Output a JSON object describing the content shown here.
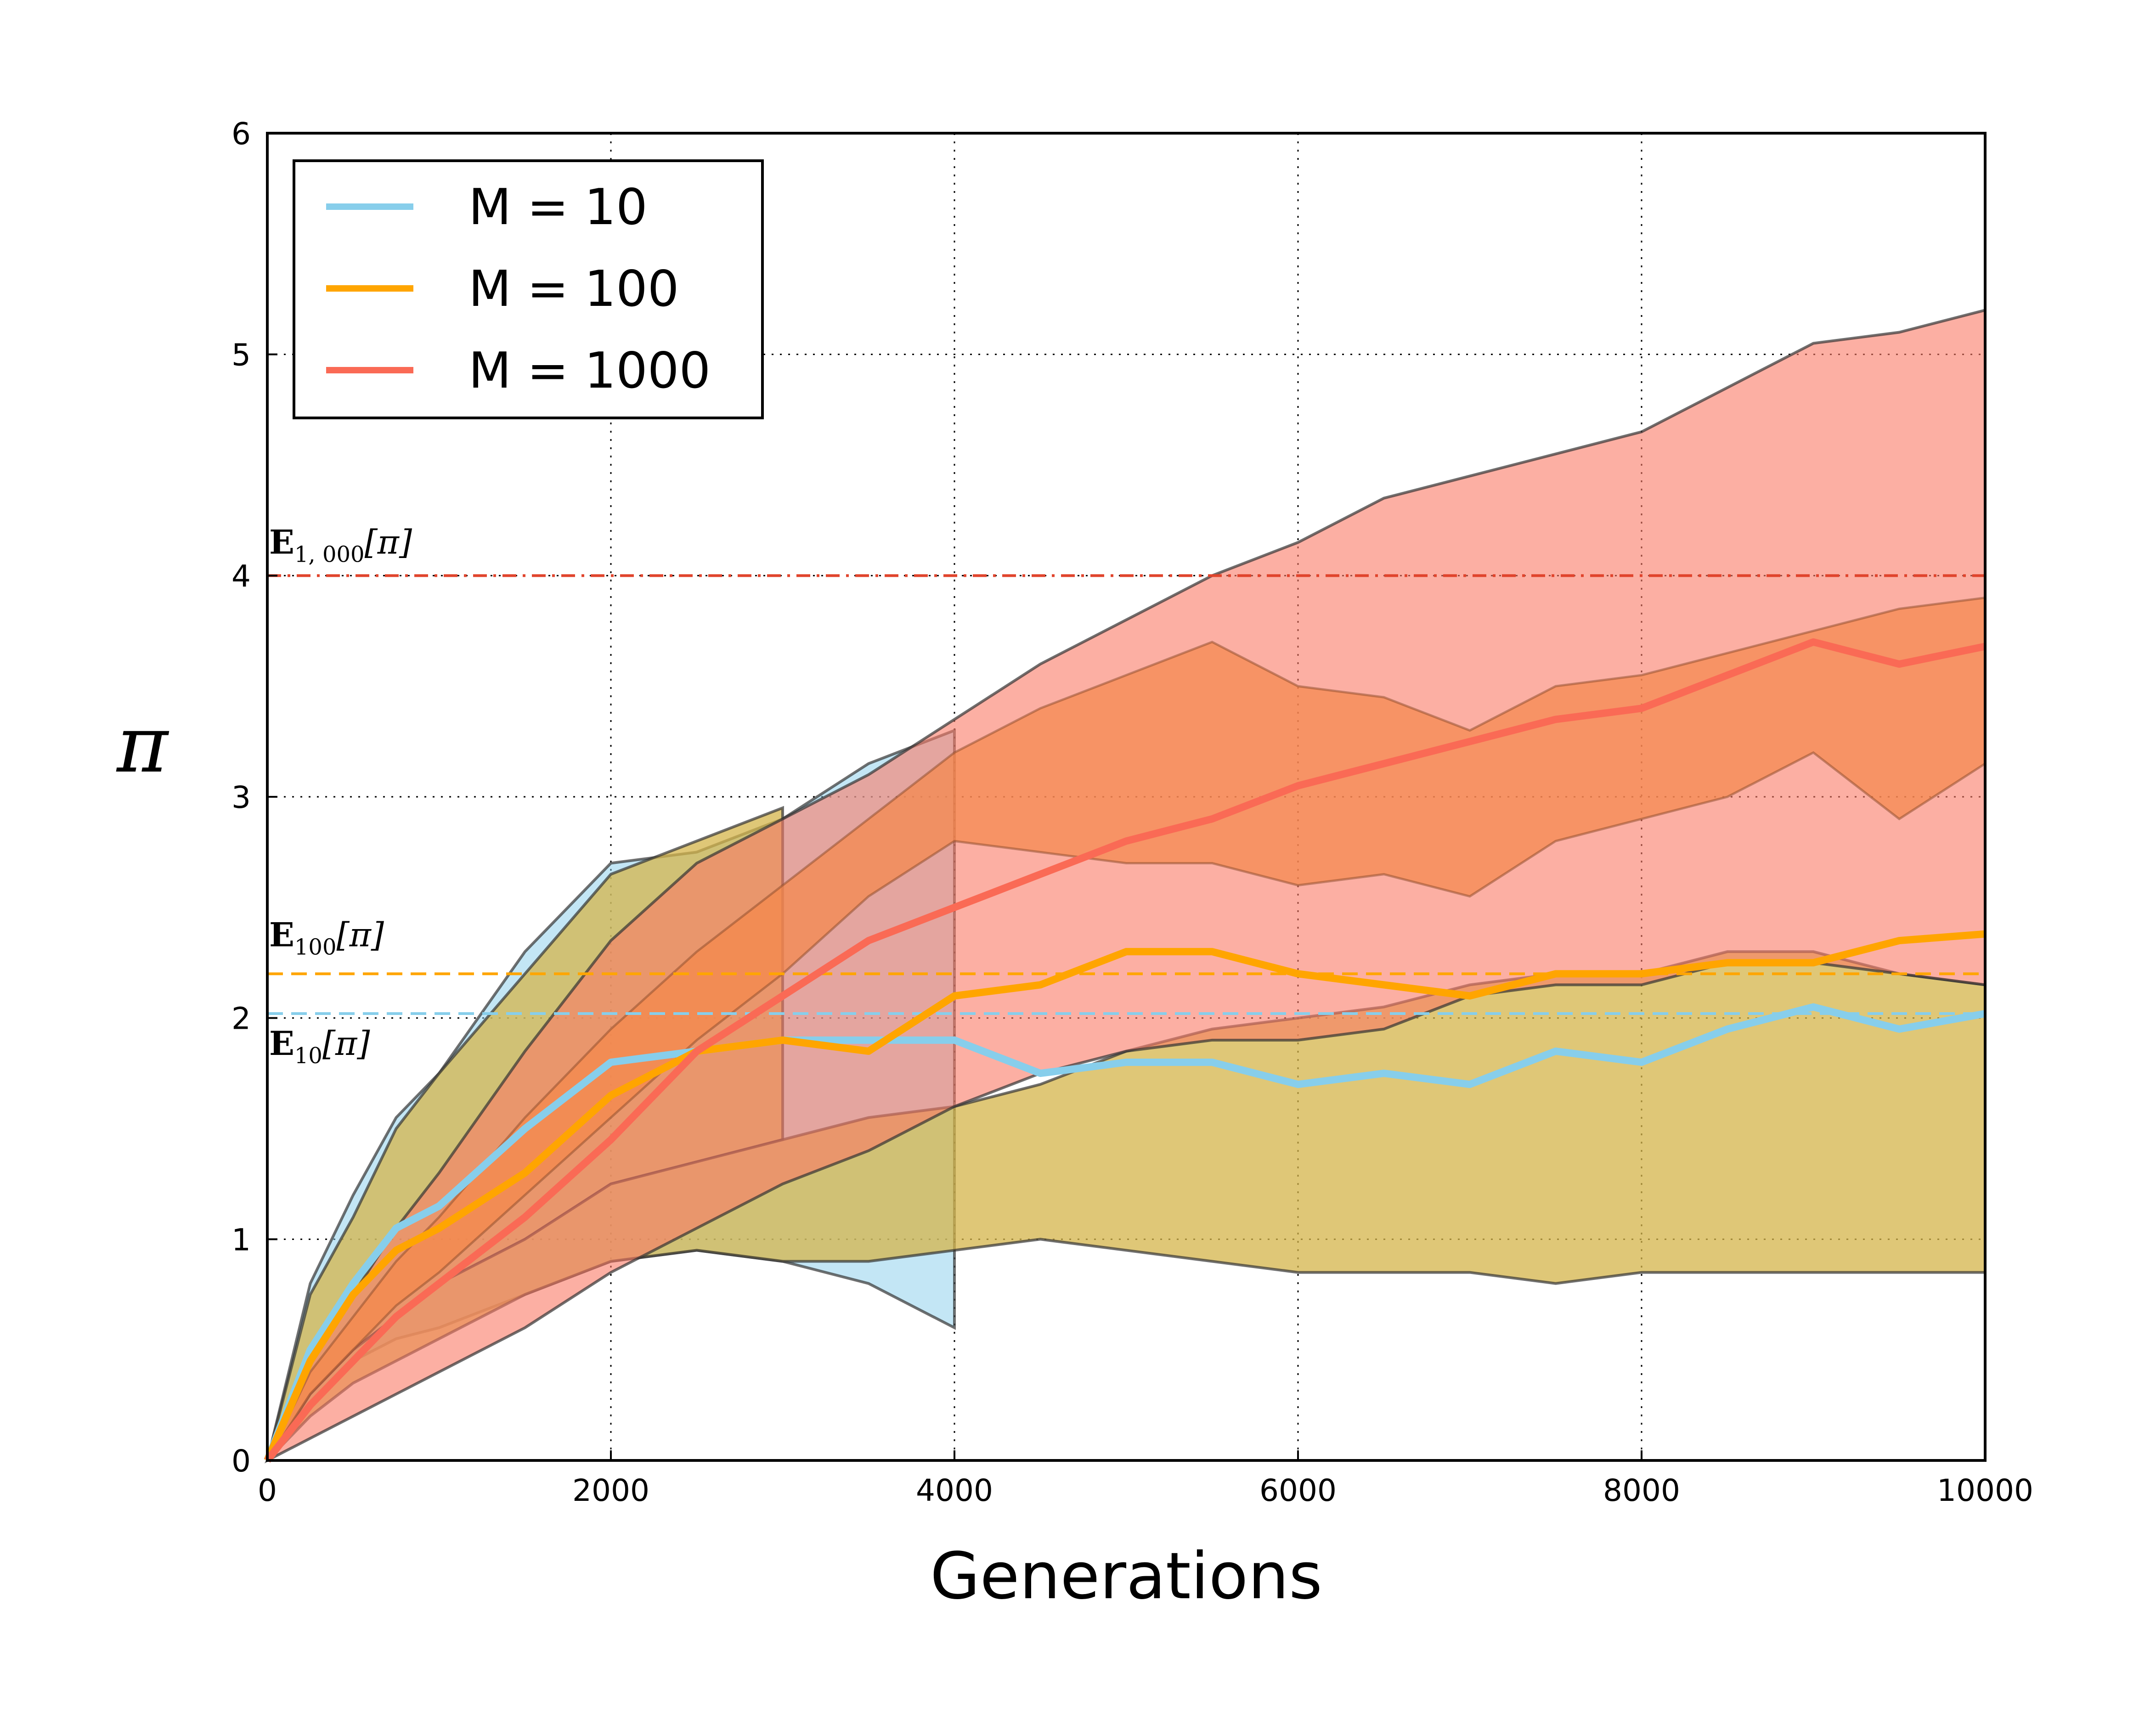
{
  "chart_data": {
    "type": "line",
    "xlabel": "Generations",
    "ylabel": "π",
    "xlim": [
      0,
      10000
    ],
    "ylim": [
      0,
      6
    ],
    "x_ticks": [
      "0",
      "2000",
      "4000",
      "6000",
      "8000",
      "10000"
    ],
    "y_ticks": [
      "0",
      "1",
      "2",
      "3",
      "4",
      "5",
      "6"
    ],
    "grid": true,
    "legend_position": "top-left",
    "x": [
      0,
      250,
      500,
      750,
      1000,
      1500,
      2000,
      2500,
      3000,
      3500,
      4000,
      4500,
      5000,
      5500,
      6000,
      6500,
      7000,
      7500,
      8000,
      8500,
      9000,
      9500,
      10000
    ],
    "series": [
      {
        "name": "M = 10",
        "color": "#87ceeb",
        "mean": [
          0,
          0.5,
          0.8,
          1.05,
          1.15,
          1.5,
          1.8,
          1.85,
          1.9,
          1.9,
          1.9,
          1.75,
          1.8,
          1.8,
          1.7,
          1.75,
          1.7,
          1.85,
          1.8,
          1.95,
          2.05,
          1.95,
          2.02
        ],
        "upper": [
          0,
          0.8,
          1.2,
          1.55,
          1.75,
          2.3,
          2.7,
          2.75,
          2.9,
          3.15,
          3.3,
          null,
          null,
          null,
          null,
          null,
          null,
          null,
          null,
          null,
          null,
          null,
          null
        ],
        "lower": [
          0,
          0.25,
          0.45,
          0.55,
          0.6,
          0.75,
          0.9,
          0.95,
          0.9,
          0.8,
          0.6,
          0.6,
          0.75,
          0.8,
          0.85,
          0.85,
          0.9,
          0.85,
          0.75,
          0.8,
          0.85,
          0.85,
          0.85
        ]
      },
      {
        "name": "M = 100",
        "color": "#ffa500",
        "mean": [
          0,
          0.45,
          0.75,
          0.95,
          1.05,
          1.3,
          1.65,
          1.85,
          1.9,
          1.85,
          2.1,
          2.15,
          2.3,
          2.3,
          2.2,
          2.15,
          2.1,
          2.2,
          2.2,
          2.25,
          2.25,
          2.35,
          2.38
        ],
        "upper": [
          0,
          0.75,
          1.1,
          1.5,
          1.75,
          2.2,
          2.65,
          2.8,
          2.95,
          null,
          null,
          null,
          null,
          null,
          null,
          null,
          null,
          null,
          null,
          null,
          null,
          null,
          null
        ],
        "lower": [
          0,
          0.3,
          0.5,
          0.65,
          0.8,
          1.0,
          1.25,
          1.35,
          1.45,
          1.55,
          1.6,
          1.7,
          1.85,
          1.95,
          2.0,
          2.05,
          2.15,
          2.2,
          2.2,
          2.3,
          2.3,
          2.2,
          2.15
        ],
        "lower_band": [
          0,
          0.2,
          0.35,
          0.45,
          0.55,
          0.75,
          0.9,
          0.95,
          0.9,
          0.9,
          0.95,
          1.0,
          0.95,
          0.9,
          0.85,
          0.85,
          0.85,
          0.8,
          0.85,
          0.85,
          0.85,
          0.85,
          0.85
        ]
      },
      {
        "name": "M = 1000",
        "color": "#fa6a55",
        "mean": [
          0,
          0.25,
          0.45,
          0.65,
          0.8,
          1.1,
          1.45,
          1.85,
          2.1,
          2.35,
          2.5,
          2.65,
          2.8,
          2.9,
          3.05,
          3.15,
          3.25,
          3.35,
          3.4,
          3.55,
          3.7,
          3.6,
          3.68
        ],
        "upper": [
          0,
          0.45,
          0.75,
          1.05,
          1.3,
          1.85,
          2.35,
          2.7,
          2.9,
          3.1,
          3.35,
          3.6,
          3.8,
          4.0,
          4.15,
          4.35,
          4.45,
          4.55,
          4.65,
          4.85,
          5.05,
          5.1,
          5.2
        ],
        "upper_inner": [
          0,
          0.4,
          0.65,
          0.9,
          1.1,
          1.55,
          1.95,
          2.3,
          2.6,
          2.9,
          3.2,
          3.4,
          3.55,
          3.7,
          3.5,
          3.45,
          3.3,
          3.5,
          3.55,
          3.65,
          3.75,
          3.85,
          3.9
        ],
        "lower_inner": [
          0,
          0.3,
          0.5,
          0.7,
          0.85,
          1.2,
          1.55,
          1.9,
          2.2,
          2.55,
          2.8,
          2.75,
          2.7,
          2.7,
          2.6,
          2.65,
          2.55,
          2.8,
          2.9,
          3.0,
          3.2,
          2.9,
          3.15
        ],
        "lower": [
          0,
          0.1,
          0.2,
          0.3,
          0.4,
          0.6,
          0.85,
          1.05,
          1.25,
          1.4,
          1.6,
          1.75,
          1.85,
          1.9,
          1.9,
          1.95,
          2.1,
          2.15,
          2.15,
          2.25,
          2.25,
          2.2,
          2.15
        ]
      }
    ],
    "reference_lines": [
      {
        "label_main": "E",
        "label_sub": "1, 000",
        "label_arg": "[π]",
        "y": 4.0,
        "color": "#e0442c",
        "style": "dashdot"
      },
      {
        "label_main": "E",
        "label_sub": "100",
        "label_arg": "[π]",
        "y": 2.2,
        "color": "#ffa500",
        "style": "dashed"
      },
      {
        "label_main": "E",
        "label_sub": "10",
        "label_arg": "[π]",
        "y": 2.02,
        "color": "#87ceeb",
        "style": "dashed"
      }
    ]
  }
}
